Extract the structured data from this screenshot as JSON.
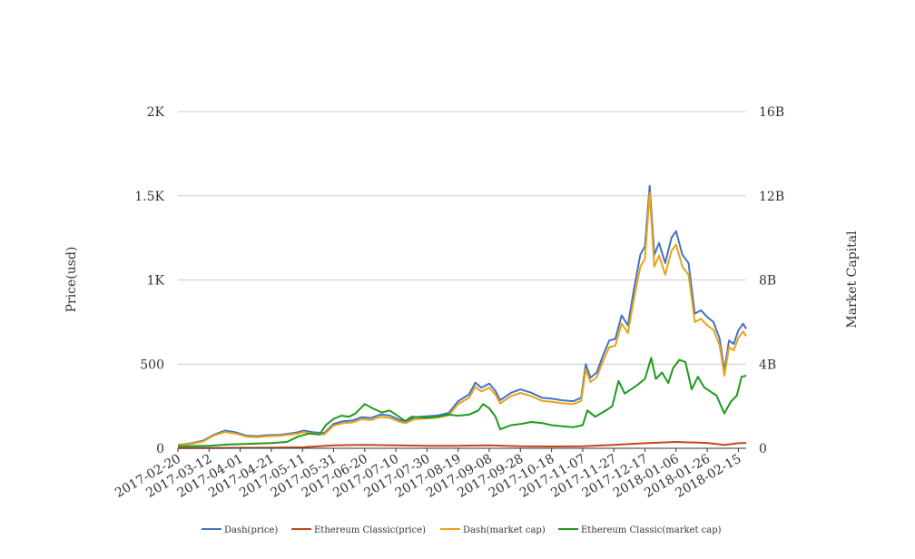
{
  "chart_data": {
    "type": "line",
    "title": "",
    "xlabel": "",
    "ylabel": "Price(usd)",
    "y2label": "Market Capital",
    "x_tick_labels": [
      "2017-02-20",
      "2017-03-12",
      "2017-04-01",
      "2017-04-21",
      "2017-05-11",
      "2017-05-31",
      "2017-06-20",
      "2017-07-10",
      "2017-07-30",
      "2017-08-19",
      "2017-09-08",
      "2017-09-28",
      "2017-10-18",
      "2017-11-07",
      "2017-11-27",
      "2017-12-17",
      "2018-01-06",
      "2018-01-26",
      "2018-02-15"
    ],
    "y_ticks": [
      0,
      500,
      1000,
      1500,
      2000
    ],
    "y_tick_labels": [
      "0",
      "500",
      "1K",
      "1.5K",
      "2K"
    ],
    "y2_ticks": [
      0,
      4000000000,
      8000000000,
      12000000000,
      16000000000
    ],
    "y2_tick_labels": [
      "0",
      "4B",
      "8B",
      "12B",
      "16B"
    ],
    "ylim": [
      0,
      2000
    ],
    "y2lim": [
      0,
      16000000000
    ],
    "grid": true,
    "legend_position": "bottom",
    "series": [
      {
        "name": "Dash(price)",
        "axis": "left",
        "color": "#4472c4",
        "points": [
          [
            "2017-02-20",
            20
          ],
          [
            "2017-03-01",
            30
          ],
          [
            "2017-03-08",
            45
          ],
          [
            "2017-03-15",
            80
          ],
          [
            "2017-03-22",
            105
          ],
          [
            "2017-03-29",
            95
          ],
          [
            "2017-04-05",
            75
          ],
          [
            "2017-04-12",
            72
          ],
          [
            "2017-04-19",
            78
          ],
          [
            "2017-04-26",
            80
          ],
          [
            "2017-05-03",
            88
          ],
          [
            "2017-05-08",
            95
          ],
          [
            "2017-05-12",
            105
          ],
          [
            "2017-05-18",
            95
          ],
          [
            "2017-05-25",
            90
          ],
          [
            "2017-05-31",
            145
          ],
          [
            "2017-06-06",
            160
          ],
          [
            "2017-06-12",
            165
          ],
          [
            "2017-06-18",
            185
          ],
          [
            "2017-06-24",
            180
          ],
          [
            "2017-06-30",
            200
          ],
          [
            "2017-07-06",
            195
          ],
          [
            "2017-07-12",
            170
          ],
          [
            "2017-07-16",
            160
          ],
          [
            "2017-07-22",
            185
          ],
          [
            "2017-07-30",
            190
          ],
          [
            "2017-08-06",
            195
          ],
          [
            "2017-08-13",
            210
          ],
          [
            "2017-08-19",
            280
          ],
          [
            "2017-08-26",
            320
          ],
          [
            "2017-08-30",
            390
          ],
          [
            "2017-09-03",
            360
          ],
          [
            "2017-09-08",
            385
          ],
          [
            "2017-09-12",
            340
          ],
          [
            "2017-09-15",
            285
          ],
          [
            "2017-09-22",
            330
          ],
          [
            "2017-09-28",
            350
          ],
          [
            "2017-10-05",
            330
          ],
          [
            "2017-10-12",
            300
          ],
          [
            "2017-10-18",
            295
          ],
          [
            "2017-10-25",
            285
          ],
          [
            "2017-11-01",
            280
          ],
          [
            "2017-11-06",
            300
          ],
          [
            "2017-11-09",
            500
          ],
          [
            "2017-11-12",
            420
          ],
          [
            "2017-11-16",
            450
          ],
          [
            "2017-11-20",
            550
          ],
          [
            "2017-11-24",
            640
          ],
          [
            "2017-11-28",
            650
          ],
          [
            "2017-12-02",
            790
          ],
          [
            "2017-12-06",
            730
          ],
          [
            "2017-12-10",
            950
          ],
          [
            "2017-12-14",
            1150
          ],
          [
            "2017-12-17",
            1200
          ],
          [
            "2017-12-20",
            1560
          ],
          [
            "2017-12-23",
            1150
          ],
          [
            "2017-12-26",
            1220
          ],
          [
            "2017-12-30",
            1100
          ],
          [
            "2018-01-03",
            1250
          ],
          [
            "2018-01-06",
            1290
          ],
          [
            "2018-01-10",
            1150
          ],
          [
            "2018-01-14",
            1100
          ],
          [
            "2018-01-18",
            800
          ],
          [
            "2018-01-22",
            820
          ],
          [
            "2018-01-26",
            780
          ],
          [
            "2018-01-30",
            750
          ],
          [
            "2018-02-03",
            650
          ],
          [
            "2018-02-06",
            460
          ],
          [
            "2018-02-09",
            640
          ],
          [
            "2018-02-12",
            620
          ],
          [
            "2018-02-15",
            700
          ],
          [
            "2018-02-18",
            740
          ],
          [
            "2018-02-20",
            710
          ]
        ]
      },
      {
        "name": "Ethereum Classic(price)",
        "axis": "left",
        "color": "#c5461c",
        "points": [
          [
            "2017-02-20",
            1
          ],
          [
            "2017-03-20",
            2
          ],
          [
            "2017-04-20",
            3
          ],
          [
            "2017-05-11",
            6
          ],
          [
            "2017-05-31",
            18
          ],
          [
            "2017-06-20",
            20
          ],
          [
            "2017-07-10",
            17
          ],
          [
            "2017-07-30",
            15
          ],
          [
            "2017-08-19",
            15
          ],
          [
            "2017-09-08",
            18
          ],
          [
            "2017-09-28",
            12
          ],
          [
            "2017-10-18",
            11
          ],
          [
            "2017-11-07",
            12
          ],
          [
            "2017-11-27",
            20
          ],
          [
            "2017-12-17",
            30
          ],
          [
            "2018-01-06",
            38
          ],
          [
            "2018-01-26",
            32
          ],
          [
            "2018-02-06",
            20
          ],
          [
            "2018-02-15",
            30
          ],
          [
            "2018-02-20",
            32
          ]
        ]
      },
      {
        "name": "Dash(market cap)",
        "axis": "right",
        "color": "#e8a317",
        "points": [
          [
            "2017-02-20",
            150000000
          ],
          [
            "2017-03-01",
            220000000
          ],
          [
            "2017-03-08",
            320000000
          ],
          [
            "2017-03-15",
            600000000
          ],
          [
            "2017-03-22",
            770000000
          ],
          [
            "2017-03-29",
            700000000
          ],
          [
            "2017-04-05",
            550000000
          ],
          [
            "2017-04-12",
            530000000
          ],
          [
            "2017-04-19",
            580000000
          ],
          [
            "2017-04-26",
            590000000
          ],
          [
            "2017-05-03",
            650000000
          ],
          [
            "2017-05-08",
            700000000
          ],
          [
            "2017-05-12",
            770000000
          ],
          [
            "2017-05-18",
            700000000
          ],
          [
            "2017-05-25",
            660000000
          ],
          [
            "2017-05-31",
            1080000000
          ],
          [
            "2017-06-06",
            1190000000
          ],
          [
            "2017-06-12",
            1230000000
          ],
          [
            "2017-06-18",
            1380000000
          ],
          [
            "2017-06-24",
            1340000000
          ],
          [
            "2017-06-30",
            1490000000
          ],
          [
            "2017-07-06",
            1450000000
          ],
          [
            "2017-07-12",
            1270000000
          ],
          [
            "2017-07-16",
            1190000000
          ],
          [
            "2017-07-22",
            1380000000
          ],
          [
            "2017-07-30",
            1420000000
          ],
          [
            "2017-08-06",
            1460000000
          ],
          [
            "2017-08-13",
            1570000000
          ],
          [
            "2017-08-19",
            2100000000
          ],
          [
            "2017-08-26",
            2400000000
          ],
          [
            "2017-08-30",
            2920000000
          ],
          [
            "2017-09-03",
            2700000000
          ],
          [
            "2017-09-08",
            2880000000
          ],
          [
            "2017-09-12",
            2550000000
          ],
          [
            "2017-09-15",
            2130000000
          ],
          [
            "2017-09-22",
            2480000000
          ],
          [
            "2017-09-28",
            2630000000
          ],
          [
            "2017-10-05",
            2480000000
          ],
          [
            "2017-10-12",
            2250000000
          ],
          [
            "2017-10-18",
            2210000000
          ],
          [
            "2017-10-25",
            2140000000
          ],
          [
            "2017-11-01",
            2100000000
          ],
          [
            "2017-11-06",
            2250000000
          ],
          [
            "2017-11-09",
            3750000000
          ],
          [
            "2017-11-12",
            3150000000
          ],
          [
            "2017-11-16",
            3380000000
          ],
          [
            "2017-11-20",
            4130000000
          ],
          [
            "2017-11-24",
            4800000000
          ],
          [
            "2017-11-28",
            4880000000
          ],
          [
            "2017-12-02",
            5930000000
          ],
          [
            "2017-12-06",
            5480000000
          ],
          [
            "2017-12-10",
            7130000000
          ],
          [
            "2017-12-14",
            8630000000
          ],
          [
            "2017-12-17",
            9000000000
          ],
          [
            "2017-12-20",
            12150000000
          ],
          [
            "2017-12-23",
            8630000000
          ],
          [
            "2017-12-26",
            9150000000
          ],
          [
            "2017-12-30",
            8250000000
          ],
          [
            "2018-01-03",
            9380000000
          ],
          [
            "2018-01-06",
            9680000000
          ],
          [
            "2018-01-10",
            8630000000
          ],
          [
            "2018-01-14",
            8250000000
          ],
          [
            "2018-01-18",
            6000000000
          ],
          [
            "2018-01-22",
            6150000000
          ],
          [
            "2018-01-26",
            5850000000
          ],
          [
            "2018-01-30",
            5630000000
          ],
          [
            "2018-02-03",
            4880000000
          ],
          [
            "2018-02-06",
            3450000000
          ],
          [
            "2018-02-09",
            4800000000
          ],
          [
            "2018-02-12",
            4650000000
          ],
          [
            "2018-02-15",
            5250000000
          ],
          [
            "2018-02-18",
            5550000000
          ],
          [
            "2018-02-20",
            5330000000
          ]
        ]
      },
      {
        "name": "Ethereum Classic(market cap)",
        "axis": "right",
        "color": "#1e9a1e",
        "points": [
          [
            "2017-02-20",
            100000000
          ],
          [
            "2017-03-12",
            120000000
          ],
          [
            "2017-03-25",
            180000000
          ],
          [
            "2017-04-01",
            200000000
          ],
          [
            "2017-04-21",
            250000000
          ],
          [
            "2017-05-01",
            300000000
          ],
          [
            "2017-05-08",
            550000000
          ],
          [
            "2017-05-15",
            700000000
          ],
          [
            "2017-05-22",
            650000000
          ],
          [
            "2017-05-26",
            1100000000
          ],
          [
            "2017-05-31",
            1400000000
          ],
          [
            "2017-06-05",
            1550000000
          ],
          [
            "2017-06-10",
            1500000000
          ],
          [
            "2017-06-14",
            1650000000
          ],
          [
            "2017-06-20",
            2100000000
          ],
          [
            "2017-06-25",
            1900000000
          ],
          [
            "2017-07-01",
            1700000000
          ],
          [
            "2017-07-06",
            1800000000
          ],
          [
            "2017-07-12",
            1500000000
          ],
          [
            "2017-07-16",
            1300000000
          ],
          [
            "2017-07-20",
            1500000000
          ],
          [
            "2017-07-30",
            1450000000
          ],
          [
            "2017-08-06",
            1500000000
          ],
          [
            "2017-08-13",
            1600000000
          ],
          [
            "2017-08-19",
            1550000000
          ],
          [
            "2017-08-26",
            1600000000
          ],
          [
            "2017-09-01",
            1800000000
          ],
          [
            "2017-09-04",
            2100000000
          ],
          [
            "2017-09-08",
            1900000000
          ],
          [
            "2017-09-12",
            1500000000
          ],
          [
            "2017-09-15",
            900000000
          ],
          [
            "2017-09-22",
            1100000000
          ],
          [
            "2017-09-28",
            1150000000
          ],
          [
            "2017-10-05",
            1250000000
          ],
          [
            "2017-10-12",
            1200000000
          ],
          [
            "2017-10-18",
            1100000000
          ],
          [
            "2017-10-25",
            1050000000
          ],
          [
            "2017-11-01",
            1000000000
          ],
          [
            "2017-11-07",
            1100000000
          ],
          [
            "2017-11-10",
            1800000000
          ],
          [
            "2017-11-15",
            1500000000
          ],
          [
            "2017-11-22",
            1800000000
          ],
          [
            "2017-11-26",
            2000000000
          ],
          [
            "2017-11-30",
            3200000000
          ],
          [
            "2017-12-04",
            2600000000
          ],
          [
            "2017-12-08",
            2800000000
          ],
          [
            "2017-12-12",
            3000000000
          ],
          [
            "2017-12-17",
            3300000000
          ],
          [
            "2017-12-21",
            4300000000
          ],
          [
            "2017-12-24",
            3300000000
          ],
          [
            "2017-12-28",
            3600000000
          ],
          [
            "2018-01-01",
            3100000000
          ],
          [
            "2018-01-04",
            3800000000
          ],
          [
            "2018-01-08",
            4200000000
          ],
          [
            "2018-01-12",
            4100000000
          ],
          [
            "2018-01-16",
            2800000000
          ],
          [
            "2018-01-20",
            3400000000
          ],
          [
            "2018-01-24",
            2900000000
          ],
          [
            "2018-01-28",
            2700000000
          ],
          [
            "2018-02-01",
            2500000000
          ],
          [
            "2018-02-06",
            1650000000
          ],
          [
            "2018-02-10",
            2200000000
          ],
          [
            "2018-02-14",
            2500000000
          ],
          [
            "2018-02-17",
            3400000000
          ],
          [
            "2018-02-20",
            3450000000
          ]
        ]
      }
    ]
  }
}
